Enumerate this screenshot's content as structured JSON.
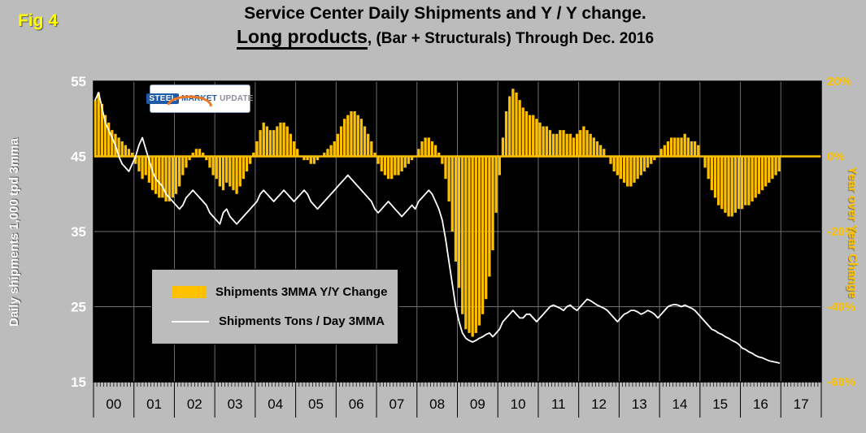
{
  "fig_label": "Fig 4",
  "title": {
    "line1": "Service Center Daily Shipments and Y / Y change.",
    "line2_emphasis": "Long products",
    "line2_rest": ", (Bar + Structurals) Through Dec. 2016"
  },
  "logo": {
    "word1": "STEEL",
    "word2": "MARKET",
    "word3": "UPDATE"
  },
  "left_axis_title": "Daily shipments 1,000 tpd 3mma",
  "right_axis_title": "Year over Year Change",
  "legend": {
    "items": [
      {
        "label": "Shipments 3MMA Y/Y Change",
        "swatch": "bar",
        "color": "#FFC000"
      },
      {
        "label": "Shipments Tons / Day 3MMA",
        "swatch": "line",
        "color": "#FFFFFF"
      }
    ]
  },
  "colors": {
    "background": "#bcbcbc",
    "plot_bg": "#000000",
    "bar": "#FFC000",
    "line": "#FFFFFF",
    "grid": "#6f6f6f",
    "fig_label": "#FFFF00",
    "right_axis_text": "#FDC200",
    "left_axis_text": "#FFFFFF"
  },
  "chart_data": {
    "type": "bar+line",
    "title": "Service Center Daily Shipments and Y / Y change. Long products, (Bar + Structurals) Through Dec. 2016",
    "years": [
      "00",
      "01",
      "02",
      "03",
      "04",
      "05",
      "06",
      "07",
      "08",
      "09",
      "10",
      "11",
      "12",
      "13",
      "14",
      "15",
      "16",
      "17"
    ],
    "months_per_year": 12,
    "grid": true,
    "legend_position": "inside-lower-left",
    "left_axis": {
      "label": "Daily shipments 1,000 tpd 3mma",
      "ticks": [
        55,
        45,
        35,
        25,
        15
      ],
      "range": [
        15,
        55
      ]
    },
    "right_axis": {
      "label": "Year over Year Change",
      "ticks": [
        20,
        0,
        -20,
        -40,
        -60
      ],
      "tick_labels": [
        "20%",
        "0%",
        "-20%",
        "-40%",
        "-60%"
      ],
      "range": [
        -60,
        20
      ]
    },
    "series": [
      {
        "name": "Shipments 3MMA Y/Y Change",
        "type": "bar",
        "axis": "right",
        "unit": "%",
        "values_by_year": [
          [
            15,
            17,
            14,
            11,
            9,
            7,
            6,
            5,
            4,
            3,
            2,
            1
          ],
          [
            -2,
            -4,
            -6,
            -5,
            -7,
            -9,
            -10,
            -11,
            -11,
            -12,
            -12,
            -11
          ],
          [
            -10,
            -8,
            -5,
            -3,
            -1,
            1,
            2,
            2,
            1,
            -1,
            -3,
            -5
          ],
          [
            -6,
            -8,
            -9,
            -7,
            -8,
            -9,
            -10,
            -8,
            -6,
            -4,
            -2,
            1
          ],
          [
            4,
            7,
            9,
            8,
            7,
            7,
            8,
            9,
            9,
            8,
            6,
            4
          ],
          [
            2,
            0,
            -1,
            -1,
            -2,
            -2,
            -1,
            0,
            1,
            2,
            3,
            4
          ],
          [
            6,
            8,
            10,
            11,
            12,
            12,
            11,
            10,
            8,
            6,
            4,
            1
          ],
          [
            -2,
            -4,
            -5,
            -6,
            -6,
            -5,
            -5,
            -4,
            -3,
            -2,
            -1,
            0
          ],
          [
            2,
            4,
            5,
            5,
            4,
            3,
            1,
            -2,
            -6,
            -12,
            -20,
            -28
          ],
          [
            -35,
            -42,
            -46,
            -47,
            -48,
            -47,
            -45,
            -42,
            -38,
            -32,
            -25,
            -15
          ],
          [
            -5,
            5,
            12,
            16,
            18,
            17,
            15,
            13,
            12,
            11,
            11,
            10
          ],
          [
            9,
            8,
            8,
            7,
            6,
            6,
            7,
            7,
            6,
            6,
            5,
            6
          ],
          [
            7,
            8,
            7,
            6,
            5,
            4,
            3,
            2,
            0,
            -2,
            -4,
            -5
          ],
          [
            -6,
            -7,
            -8,
            -8,
            -7,
            -6,
            -5,
            -4,
            -3,
            -2,
            -1,
            0
          ],
          [
            2,
            3,
            4,
            5,
            5,
            5,
            5,
            6,
            5,
            4,
            4,
            3
          ],
          [
            0,
            -3,
            -6,
            -9,
            -11,
            -13,
            -14,
            -15,
            -16,
            -16,
            -15,
            -14
          ],
          [
            -14,
            -13,
            -13,
            -12,
            -11,
            -10,
            -9,
            -8,
            -7,
            -6,
            -5,
            -4
          ]
        ]
      },
      {
        "name": "Shipments Tons / Day 3MMA",
        "type": "line",
        "axis": "left",
        "unit": "1,000 tpd",
        "values_by_year": [
          [
            52.5,
            53.5,
            51.5,
            49.5,
            48.5,
            47.5,
            46.5,
            45,
            44,
            43.5,
            43,
            44
          ],
          [
            45,
            46.5,
            47.5,
            46,
            44.5,
            43,
            42,
            41.5,
            41,
            40,
            39.5,
            39
          ],
          [
            38.5,
            38,
            38.5,
            39.5,
            40,
            40.5,
            40,
            39.5,
            39,
            38.5,
            37.5,
            37
          ],
          [
            36.5,
            36,
            37.5,
            38,
            37,
            36.5,
            36,
            36.5,
            37,
            37.5,
            38,
            38.5
          ],
          [
            39,
            40,
            40.5,
            40,
            39.5,
            39,
            39.5,
            40,
            40.5,
            40,
            39.5,
            39
          ],
          [
            39.5,
            40,
            40.5,
            40,
            39,
            38.5,
            38,
            38.5,
            39,
            39.5,
            40,
            40.5
          ],
          [
            41,
            41.5,
            42,
            42.5,
            42,
            41.5,
            41,
            40.5,
            40,
            39.5,
            39,
            38
          ],
          [
            37.5,
            38,
            38.5,
            39,
            38.5,
            38,
            37.5,
            37,
            37.5,
            38,
            38.5,
            38
          ],
          [
            39,
            39.5,
            40,
            40.5,
            40,
            39,
            38,
            36.5,
            34,
            31,
            28,
            25
          ],
          [
            23,
            21.5,
            20.8,
            20.5,
            20.3,
            20.5,
            20.8,
            21,
            21.3,
            21.5,
            21,
            21.5
          ],
          [
            22,
            23,
            23.5,
            24,
            24.5,
            24,
            23.5,
            23.5,
            24,
            24,
            23.5,
            23
          ],
          [
            23.5,
            24,
            24.5,
            25,
            25.2,
            25,
            24.8,
            24.5,
            25,
            25.2,
            24.8,
            24.5
          ],
          [
            25,
            25.5,
            26,
            25.8,
            25.5,
            25.2,
            25,
            24.8,
            24.5,
            24,
            23.5,
            23
          ],
          [
            23.5,
            24,
            24.2,
            24.5,
            24.5,
            24.3,
            24,
            24.2,
            24.5,
            24.3,
            24,
            23.5
          ],
          [
            24,
            24.5,
            25,
            25.2,
            25.3,
            25.2,
            25,
            25.2,
            25,
            24.8,
            24.5,
            24
          ],
          [
            23.5,
            23,
            22.5,
            22,
            21.8,
            21.5,
            21.3,
            21,
            20.8,
            20.5,
            20.3,
            20
          ],
          [
            19.5,
            19.3,
            19,
            18.8,
            18.5,
            18.3,
            18.2,
            18,
            17.8,
            17.7,
            17.6,
            17.5
          ]
        ]
      }
    ]
  }
}
